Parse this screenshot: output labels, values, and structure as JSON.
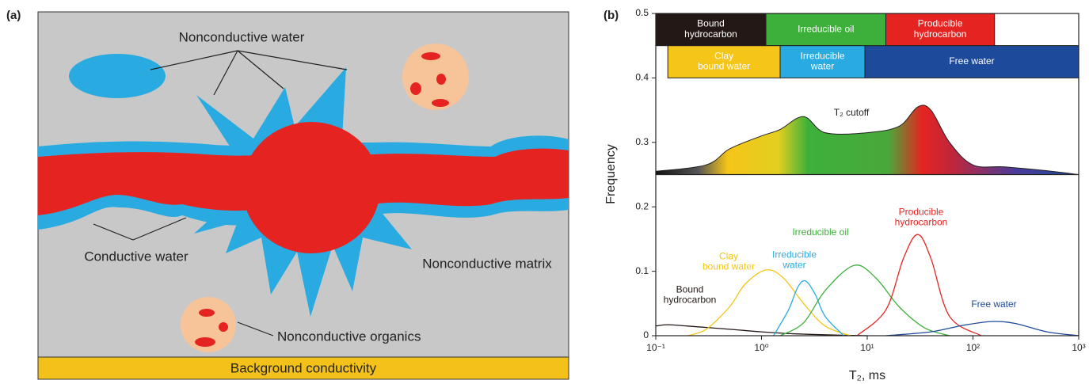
{
  "diagram": {
    "panel_label": "(a)",
    "labels": {
      "nonconductive_water": "Nonconductive water",
      "conductive_water": "Conductive water",
      "nonconductive_matrix": "Nonconductive matrix",
      "nonconductive_organics": "Nonconductive organics",
      "background_conductivity": "Background conductivity"
    }
  },
  "chart_data": {
    "type": "line",
    "panel_label": "(b)",
    "ylabel": "Frequency",
    "xlabel": "T₂, ms",
    "log_x": true,
    "xlim": [
      0.1,
      1000
    ],
    "xticks": [
      {
        "value": 0.1,
        "label": "10⁻¹"
      },
      {
        "value": 1,
        "label": "10⁰"
      },
      {
        "value": 10,
        "label": "10¹"
      },
      {
        "value": 100,
        "label": "10²"
      },
      {
        "value": 1000,
        "label": "10³"
      }
    ],
    "ylim": [
      0,
      0.5
    ],
    "yticks": [
      0,
      0.1,
      0.2,
      0.3,
      0.4,
      0.5
    ],
    "annotation": "T₂ cutoff",
    "envelope": {
      "base": 0.25,
      "x": [
        0.1,
        0.3,
        0.5,
        1,
        1.5,
        2.5,
        4,
        10,
        20,
        30,
        40,
        60,
        100,
        200,
        500,
        1000
      ],
      "values": [
        0.255,
        0.265,
        0.29,
        0.31,
        0.32,
        0.34,
        0.315,
        0.315,
        0.325,
        0.355,
        0.35,
        0.3,
        0.265,
        0.262,
        0.256,
        0.25
      ]
    },
    "boxes": [
      [
        {
          "label": "Bound\nhydrocarbon",
          "start": 0.1,
          "end": 1.1,
          "color": "#231815"
        },
        {
          "label": "Irreducible oil",
          "start": 1.1,
          "end": 15,
          "color": "#3db03b"
        },
        {
          "label": "Producible\nhydrocarbon",
          "start": 15,
          "end": 160,
          "color": "#e52421"
        },
        {
          "start": 160,
          "end": 1000,
          "color": "#ffffff"
        }
      ],
      [
        {
          "label": "Clay\nbound water",
          "start": 0.13,
          "end": 1.5,
          "color": "#f5c518"
        },
        {
          "label": "Irreducible\nwater",
          "start": 1.5,
          "end": 9.5,
          "color": "#29abe2"
        },
        {
          "label": "Free water",
          "start": 9.5,
          "end": 1000,
          "color": "#1e4a9c"
        }
      ]
    ],
    "series": [
      {
        "name": "Bound\nhydrocarbon",
        "color": "#231815",
        "x": [
          0.1,
          0.13,
          0.2,
          0.5,
          1,
          2,
          5,
          10
        ],
        "values": [
          0.015,
          0.017,
          0.015,
          0.01,
          0.006,
          0.003,
          0.001,
          0
        ]
      },
      {
        "name": "Clay\nbound water",
        "color": "#f5c518",
        "x": [
          0.2,
          0.3,
          0.5,
          0.7,
          1.1,
          1.6,
          2.5,
          4,
          7
        ],
        "values": [
          0,
          0.01,
          0.045,
          0.08,
          0.102,
          0.09,
          0.05,
          0.015,
          0
        ]
      },
      {
        "name": "Irreducible\nwater",
        "color": "#29abe2",
        "x": [
          1.3,
          1.8,
          2.2,
          2.6,
          3.2,
          4,
          6
        ],
        "values": [
          0,
          0.04,
          0.075,
          0.085,
          0.065,
          0.03,
          0
        ]
      },
      {
        "name": "Irreducible oil",
        "color": "#3db03b",
        "x": [
          1.5,
          2.5,
          4,
          7.5,
          12,
          20,
          35,
          60
        ],
        "values": [
          0,
          0.02,
          0.07,
          0.109,
          0.09,
          0.045,
          0.012,
          0
        ]
      },
      {
        "name": "Producible\nhydrocarbon",
        "color": "#e52421",
        "x": [
          8,
          15,
          22,
          30,
          40,
          60,
          120
        ],
        "values": [
          0,
          0.04,
          0.12,
          0.157,
          0.12,
          0.03,
          0
        ]
      },
      {
        "name": "Free water",
        "color": "#1e4a9c",
        "x": [
          15,
          40,
          80,
          150,
          250,
          500,
          1000
        ],
        "values": [
          0,
          0.006,
          0.016,
          0.022,
          0.019,
          0.006,
          0
        ]
      }
    ]
  }
}
